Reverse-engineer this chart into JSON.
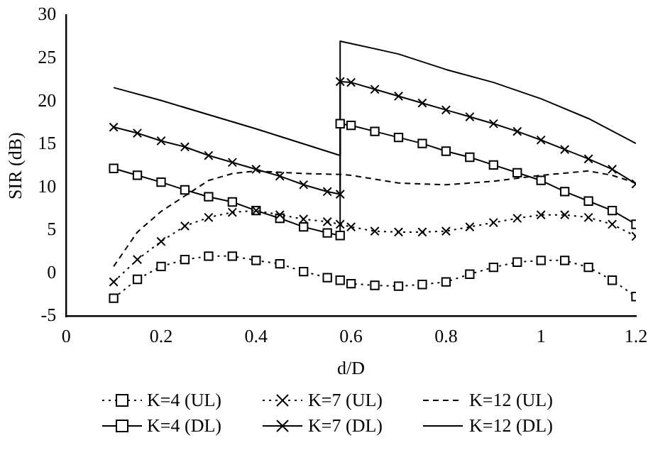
{
  "chart_data": {
    "type": "line",
    "xlabel": "d/D",
    "ylabel": "SIR (dB)",
    "xlim": [
      0,
      1.2
    ],
    "xticks": [
      0,
      0.2,
      0.4,
      0.6,
      0.8,
      1,
      1.2
    ],
    "ylim": [
      -5,
      30
    ],
    "yticks": [
      -5,
      0,
      5,
      10,
      15,
      20,
      25,
      30
    ],
    "grid": false,
    "legend": "bottom",
    "series": [
      {
        "name": "K=4 (UL)",
        "color": "#000000",
        "marker": "square",
        "line_style": "dotted",
        "x": [
          0.1,
          0.15,
          0.2,
          0.25,
          0.3,
          0.35,
          0.4,
          0.45,
          0.5,
          0.55,
          0.577,
          0.6,
          0.65,
          0.7,
          0.75,
          0.8,
          0.85,
          0.9,
          0.95,
          1,
          1.05,
          1.1,
          1.15,
          1.2
        ],
        "values": [
          -2.9,
          -0.7,
          0.8,
          1.6,
          2.0,
          2.0,
          1.5,
          1.1,
          0.2,
          -0.5,
          -0.8,
          -1.2,
          -1.4,
          -1.5,
          -1.3,
          -1.0,
          -0.1,
          0.7,
          1.3,
          1.5,
          1.5,
          0.7,
          -0.8,
          -2.7
        ]
      },
      {
        "name": "K=7 (UL)",
        "color": "#000000",
        "marker": "cross",
        "line_style": "dotted",
        "x": [
          0.1,
          0.15,
          0.2,
          0.25,
          0.3,
          0.35,
          0.4,
          0.45,
          0.5,
          0.55,
          0.577,
          0.6,
          0.65,
          0.7,
          0.75,
          0.8,
          0.85,
          0.9,
          0.95,
          1,
          1.05,
          1.1,
          1.15,
          1.2
        ],
        "values": [
          -1.0,
          1.6,
          3.7,
          5.5,
          6.5,
          7.1,
          7.3,
          6.8,
          6.3,
          6.0,
          5.7,
          5.4,
          4.9,
          4.8,
          4.8,
          4.9,
          5.4,
          5.9,
          6.4,
          6.8,
          6.8,
          6.5,
          5.7,
          4.3
        ]
      },
      {
        "name": "K=12 (UL)",
        "color": "#000000",
        "marker": "none",
        "line_style": "dashed",
        "x": [
          0.1,
          0.15,
          0.2,
          0.25,
          0.3,
          0.35,
          0.4,
          0.5,
          0.577,
          0.6,
          0.7,
          0.8,
          0.9,
          1,
          1.1,
          1.15,
          1.2
        ],
        "values": [
          0.8,
          4.8,
          7.2,
          9.0,
          10.8,
          11.6,
          11.9,
          11.6,
          11.5,
          11.4,
          10.5,
          10.3,
          10.7,
          11.4,
          11.9,
          11.4,
          10.5
        ]
      },
      {
        "name": "K=4 (DL)",
        "color": "#000000",
        "marker": "square",
        "line_style": "solid",
        "x": [
          0.1,
          0.15,
          0.2,
          0.25,
          0.3,
          0.35,
          0.4,
          0.45,
          0.5,
          0.55,
          0.577,
          0.577,
          0.6,
          0.65,
          0.7,
          0.75,
          0.8,
          0.85,
          0.9,
          0.95,
          1,
          1.05,
          1.1,
          1.15,
          1.2
        ],
        "values": [
          12.2,
          11.4,
          10.6,
          9.7,
          8.9,
          8.3,
          7.3,
          6.4,
          5.4,
          4.7,
          4.4,
          17.4,
          17.2,
          16.5,
          15.8,
          15.1,
          14.2,
          13.5,
          12.6,
          11.7,
          10.8,
          9.5,
          8.4,
          7.3,
          5.7
        ]
      },
      {
        "name": "K=7 (DL)",
        "color": "#000000",
        "marker": "cross",
        "line_style": "solid",
        "x": [
          0.1,
          0.15,
          0.2,
          0.25,
          0.3,
          0.35,
          0.4,
          0.45,
          0.5,
          0.55,
          0.577,
          0.577,
          0.6,
          0.65,
          0.7,
          0.75,
          0.8,
          0.85,
          0.9,
          0.95,
          1,
          1.05,
          1.1,
          1.15,
          1.2
        ],
        "values": [
          17.0,
          16.3,
          15.4,
          14.7,
          13.7,
          12.9,
          12.1,
          11.3,
          10.3,
          9.5,
          9.2,
          22.3,
          22.2,
          21.4,
          20.6,
          19.8,
          19.0,
          18.2,
          17.4,
          16.5,
          15.5,
          14.4,
          13.3,
          12.1,
          10.4
        ]
      },
      {
        "name": "K=12 (DL)",
        "color": "#000000",
        "marker": "none",
        "line_style": "solid",
        "x": [
          0.1,
          0.2,
          0.4,
          0.577,
          0.577,
          0.7,
          0.8,
          0.9,
          1,
          1.1,
          1.2
        ],
        "values": [
          21.6,
          20.1,
          16.8,
          13.7,
          27.0,
          25.5,
          23.7,
          22.2,
          20.3,
          18.0,
          15.1
        ]
      }
    ]
  }
}
